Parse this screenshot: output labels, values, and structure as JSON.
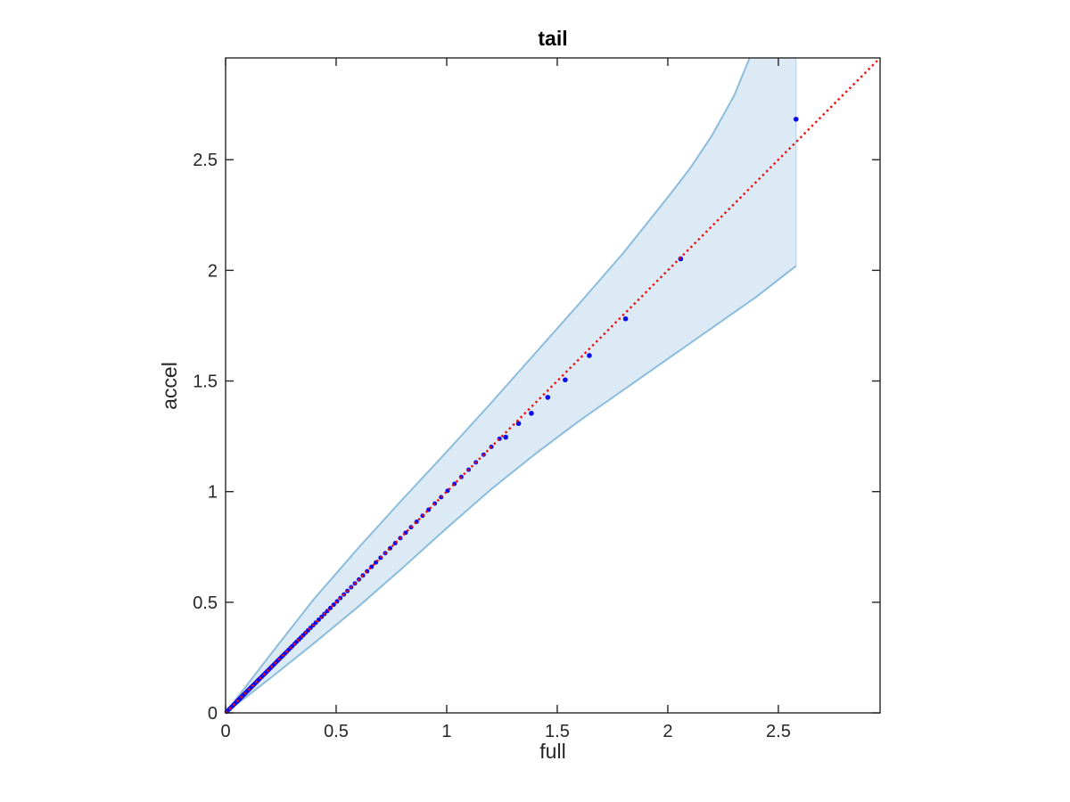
{
  "figure": {
    "title": "tail",
    "xlabel": "full",
    "ylabel": "accel"
  },
  "chart_data": {
    "type": "scatter",
    "title": "tail",
    "xlabel": "full",
    "ylabel": "accel",
    "xlim": [
      0,
      2.96
    ],
    "ylim": [
      0,
      2.96
    ],
    "grid": false,
    "box": true,
    "tick_dir": "in",
    "xticks": {
      "values": [
        0,
        0.5,
        1,
        1.5,
        2,
        2.5
      ],
      "labels": [
        "0",
        "0.5",
        "1",
        "1.5",
        "2",
        "2.5"
      ]
    },
    "yticks": {
      "values": [
        0,
        0.5,
        1,
        1.5,
        2,
        2.5
      ],
      "labels": [
        "0",
        "0.5",
        "1",
        "1.5",
        "2",
        "2.5"
      ]
    },
    "colors": {
      "band_fill": "#dceaf6",
      "band_edge": "#8cbcdc",
      "points": "#0b0bf0",
      "reference_line": "#f20c0c",
      "axis": "#262626",
      "tick_label": "#262626",
      "title": "#000000",
      "background": "#ffffff"
    },
    "reference_line": {
      "style": "dotted",
      "color": "#f20c0c",
      "x": [
        0,
        2.96
      ],
      "y": [
        0,
        2.96
      ]
    },
    "confidence_band": {
      "upper": [
        [
          0,
          0
        ],
        [
          0.2,
          0.26
        ],
        [
          0.4,
          0.515
        ],
        [
          0.6,
          0.745
        ],
        [
          0.8,
          0.965
        ],
        [
          1.0,
          1.18
        ],
        [
          1.2,
          1.4
        ],
        [
          1.4,
          1.625
        ],
        [
          1.6,
          1.85
        ],
        [
          1.8,
          2.08
        ],
        [
          2.0,
          2.33
        ],
        [
          2.1,
          2.46
        ],
        [
          2.2,
          2.61
        ],
        [
          2.3,
          2.79
        ],
        [
          2.37,
          2.96
        ]
      ],
      "lower": [
        [
          0,
          0
        ],
        [
          0.2,
          0.155
        ],
        [
          0.4,
          0.315
        ],
        [
          0.6,
          0.48
        ],
        [
          0.8,
          0.655
        ],
        [
          1.0,
          0.835
        ],
        [
          1.2,
          1.01
        ],
        [
          1.4,
          1.17
        ],
        [
          1.6,
          1.32
        ],
        [
          1.8,
          1.46
        ],
        [
          2.0,
          1.6
        ],
        [
          2.2,
          1.74
        ],
        [
          2.4,
          1.88
        ],
        [
          2.58,
          2.02
        ]
      ],
      "clip_x_max": 2.58
    },
    "points_on_diagonal_x": [
      0.005,
      0.01,
      0.015,
      0.02,
      0.025,
      0.03,
      0.035,
      0.04,
      0.045,
      0.05,
      0.052,
      0.053,
      0.055,
      0.056,
      0.058,
      0.06,
      0.062,
      0.064,
      0.066,
      0.067,
      0.07,
      0.072,
      0.074,
      0.076,
      0.078,
      0.081,
      0.083,
      0.086,
      0.088,
      0.091,
      0.094,
      0.097,
      0.1,
      0.103,
      0.106,
      0.109,
      0.112,
      0.116,
      0.119,
      0.123,
      0.127,
      0.131,
      0.135,
      0.139,
      0.143,
      0.147,
      0.152,
      0.156,
      0.161,
      0.166,
      0.171,
      0.176,
      0.182,
      0.187,
      0.193,
      0.199,
      0.205,
      0.211,
      0.217,
      0.224,
      0.231,
      0.238,
      0.245,
      0.253,
      0.26,
      0.268,
      0.276,
      0.285,
      0.294,
      0.302,
      0.312,
      0.321,
      0.331,
      0.341,
      0.351,
      0.362,
      0.373,
      0.384,
      0.396,
      0.408,
      0.421,
      0.434,
      0.447,
      0.46,
      0.474,
      0.489,
      0.504,
      0.519,
      0.535,
      0.551,
      0.568,
      0.585,
      0.603,
      0.621,
      0.64,
      0.66,
      0.68,
      0.701,
      0.722,
      0.744,
      0.767,
      0.79,
      0.814,
      0.839,
      0.864,
      0.891,
      0.918,
      0.946,
      0.975,
      1.004,
      1.035,
      1.066,
      1.099,
      1.132,
      1.167,
      1.202,
      1.239
    ],
    "points_xy": [
      [
        1.267,
        1.246
      ],
      [
        1.325,
        1.308
      ],
      [
        1.383,
        1.354
      ],
      [
        1.457,
        1.426
      ],
      [
        1.536,
        1.505
      ],
      [
        1.645,
        1.615
      ],
      [
        1.809,
        1.781
      ],
      [
        2.058,
        2.052
      ],
      [
        2.58,
        2.683
      ]
    ]
  }
}
